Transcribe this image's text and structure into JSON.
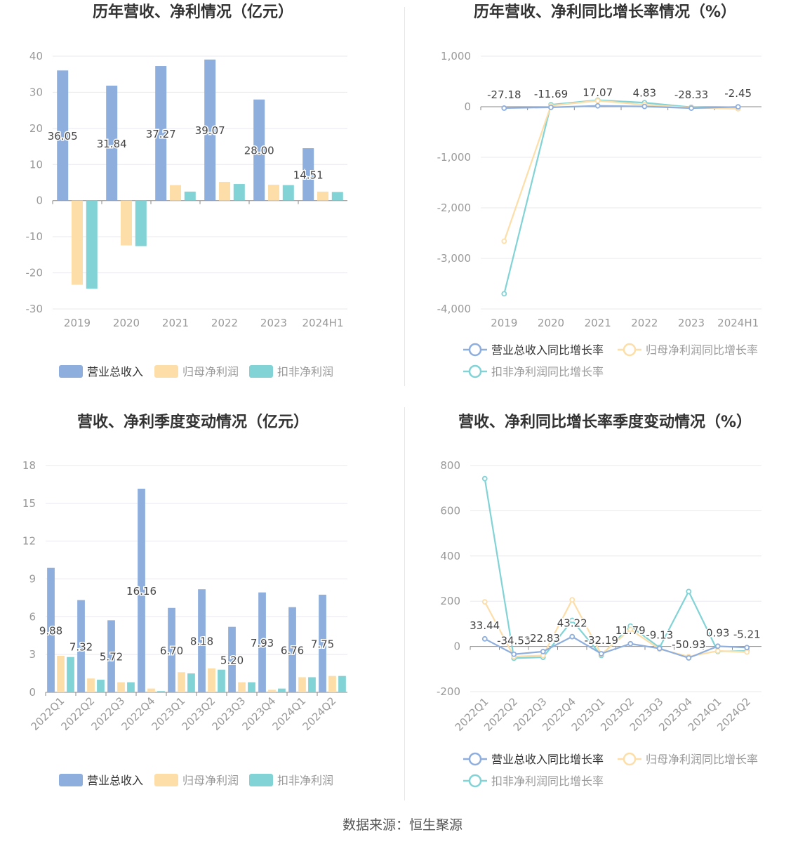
{
  "colors": {
    "revenue": "#8eaedd",
    "parent_profit": "#fddea8",
    "deducted_profit": "#81d3d6",
    "grid": "#e8e8ef",
    "axis": "#999999",
    "tick": "#999999",
    "label": "#444444"
  },
  "footer": {
    "source": "数据来源：恒生聚源"
  },
  "chart_data": [
    {
      "id": "annual-amounts",
      "type": "bar",
      "title": "历年营收、净利情况（亿元）",
      "categories": [
        "2019",
        "2020",
        "2021",
        "2022",
        "2023",
        "2024H1"
      ],
      "series": [
        {
          "name": "营业总收入",
          "values": [
            36.05,
            31.84,
            37.27,
            39.07,
            28.0,
            14.51
          ],
          "labels": [
            "36.05",
            "31.84",
            "37.27",
            "39.07",
            "28.00",
            "14.51"
          ]
        },
        {
          "name": "归母净利润",
          "values": [
            -23.3,
            -12.4,
            4.3,
            5.2,
            4.4,
            2.5
          ]
        },
        {
          "name": "扣非净利润",
          "values": [
            -24.4,
            -12.6,
            2.5,
            4.6,
            4.3,
            2.4
          ]
        }
      ],
      "ylim": [
        -30,
        40
      ],
      "yticks": [
        40,
        30,
        20,
        10,
        0,
        -10,
        -20,
        -30
      ],
      "ytick_labels": [
        "40",
        "30",
        "20",
        "10",
        "0",
        "-10",
        "-20",
        "-30"
      ],
      "legend": [
        "营业总收入",
        "归母净利润",
        "扣非净利润"
      ],
      "legend_position": "bottom",
      "grid": true
    },
    {
      "id": "annual-growth",
      "type": "line",
      "title": "历年营收、净利同比增长率情况（%）",
      "categories": [
        "2019",
        "2020",
        "2021",
        "2022",
        "2023",
        "2024H1"
      ],
      "series": [
        {
          "name": "营业总收入同比增长率",
          "values": [
            -27.18,
            -11.69,
            17.07,
            4.83,
            -28.33,
            -2.45
          ],
          "labels": [
            "-27.18",
            "-11.69",
            "17.07",
            "4.83",
            "-28.33",
            "-2.45"
          ]
        },
        {
          "name": "归母净利润同比增长率",
          "values": [
            -2660,
            20,
            120,
            40,
            -20,
            -40
          ]
        },
        {
          "name": "扣非净利润同比增长率",
          "values": [
            -3700,
            40,
            130,
            80,
            -10,
            -30
          ]
        }
      ],
      "ylim": [
        -4000,
        1000
      ],
      "yticks": [
        1000,
        0,
        -1000,
        -2000,
        -3000,
        -4000
      ],
      "ytick_labels": [
        "1,000",
        "0",
        "-1,000",
        "-2,000",
        "-3,000",
        "-4,000"
      ],
      "legend": [
        "营业总收入同比增长率",
        "归母净利润同比增长率",
        "扣非净利润同比增长率"
      ],
      "legend_position": "bottom",
      "grid": true
    },
    {
      "id": "quarterly-amounts",
      "type": "bar",
      "title": "营收、净利季度变动情况（亿元）",
      "categories": [
        "2022Q1",
        "2022Q2",
        "2022Q3",
        "2022Q4",
        "2023Q1",
        "2023Q2",
        "2023Q3",
        "2023Q4",
        "2024Q1",
        "2024Q2"
      ],
      "series": [
        {
          "name": "营业总收入",
          "values": [
            9.88,
            7.32,
            5.72,
            16.16,
            6.7,
            8.18,
            5.2,
            7.93,
            6.76,
            7.75
          ],
          "labels": [
            "9.88",
            "7.32",
            "5.72",
            "16.16",
            "6.70",
            "8.18",
            "5.20",
            "7.93",
            "6.76",
            "7.75"
          ]
        },
        {
          "name": "归母净利润",
          "values": [
            2.9,
            1.1,
            0.8,
            0.3,
            1.6,
            1.9,
            0.8,
            0.2,
            1.2,
            1.3
          ]
        },
        {
          "name": "扣非净利润",
          "values": [
            2.8,
            1.0,
            0.8,
            0.1,
            1.5,
            1.8,
            0.8,
            0.3,
            1.2,
            1.3
          ]
        }
      ],
      "ylim": [
        0,
        18
      ],
      "yticks": [
        18,
        15,
        12,
        9,
        6,
        3,
        0
      ],
      "ytick_labels": [
        "18",
        "15",
        "12",
        "9",
        "6",
        "3",
        "0"
      ],
      "legend": [
        "营业总收入",
        "归母净利润",
        "扣非净利润"
      ],
      "legend_position": "bottom",
      "grid": true
    },
    {
      "id": "quarterly-growth",
      "type": "line",
      "title": "营收、净利同比增长率季度变动情况（%）",
      "categories": [
        "2022Q1",
        "2022Q2",
        "2022Q3",
        "2022Q4",
        "2023Q1",
        "2023Q2",
        "2023Q3",
        "2023Q4",
        "2024Q1",
        "2024Q2"
      ],
      "series": [
        {
          "name": "营业总收入同比增长率",
          "values": [
            33.44,
            -34.53,
            -22.83,
            43.22,
            -32.19,
            11.79,
            -9.13,
            -50.93,
            0.93,
            -5.21
          ],
          "labels": [
            "33.44",
            "-34.53",
            "-22.83",
            "43.22",
            "-32.19",
            "11.79",
            "-9.13",
            "-50.93",
            "0.93",
            "-5.21"
          ]
        },
        {
          "name": "归母净利润同比增长率",
          "values": [
            197,
            -45,
            -40,
            206,
            -35,
            75,
            -12,
            -45,
            -20,
            -25
          ]
        },
        {
          "name": "扣非净利润同比增长率",
          "values": [
            742,
            -52,
            -48,
            115,
            -40,
            90,
            -5,
            243,
            -22,
            -20
          ]
        }
      ],
      "ylim": [
        -200,
        800
      ],
      "yticks": [
        800,
        600,
        400,
        200,
        0,
        -200
      ],
      "ytick_labels": [
        "800",
        "600",
        "400",
        "200",
        "0",
        "-200"
      ],
      "legend": [
        "营业总收入同比增长率",
        "归母净利润同比增长率",
        "扣非净利润同比增长率"
      ],
      "legend_position": "bottom",
      "grid": true
    }
  ]
}
